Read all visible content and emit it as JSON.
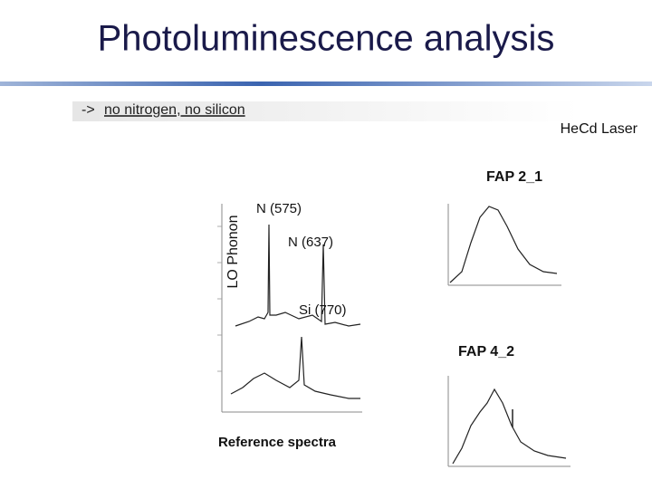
{
  "slide": {
    "title": "Photoluminescence analysis",
    "subtitle": {
      "prefix": "->",
      "text": "no nitrogen, no silicon"
    },
    "laser": "HeCd Laser",
    "reference": {
      "caption": "Reference spectra",
      "axis_label": "LO Phonon",
      "peaks": [
        "N (575)",
        "N (637)",
        "Si (770)"
      ]
    },
    "samples": [
      "FAP 2_1",
      "FAP 4_2"
    ]
  }
}
